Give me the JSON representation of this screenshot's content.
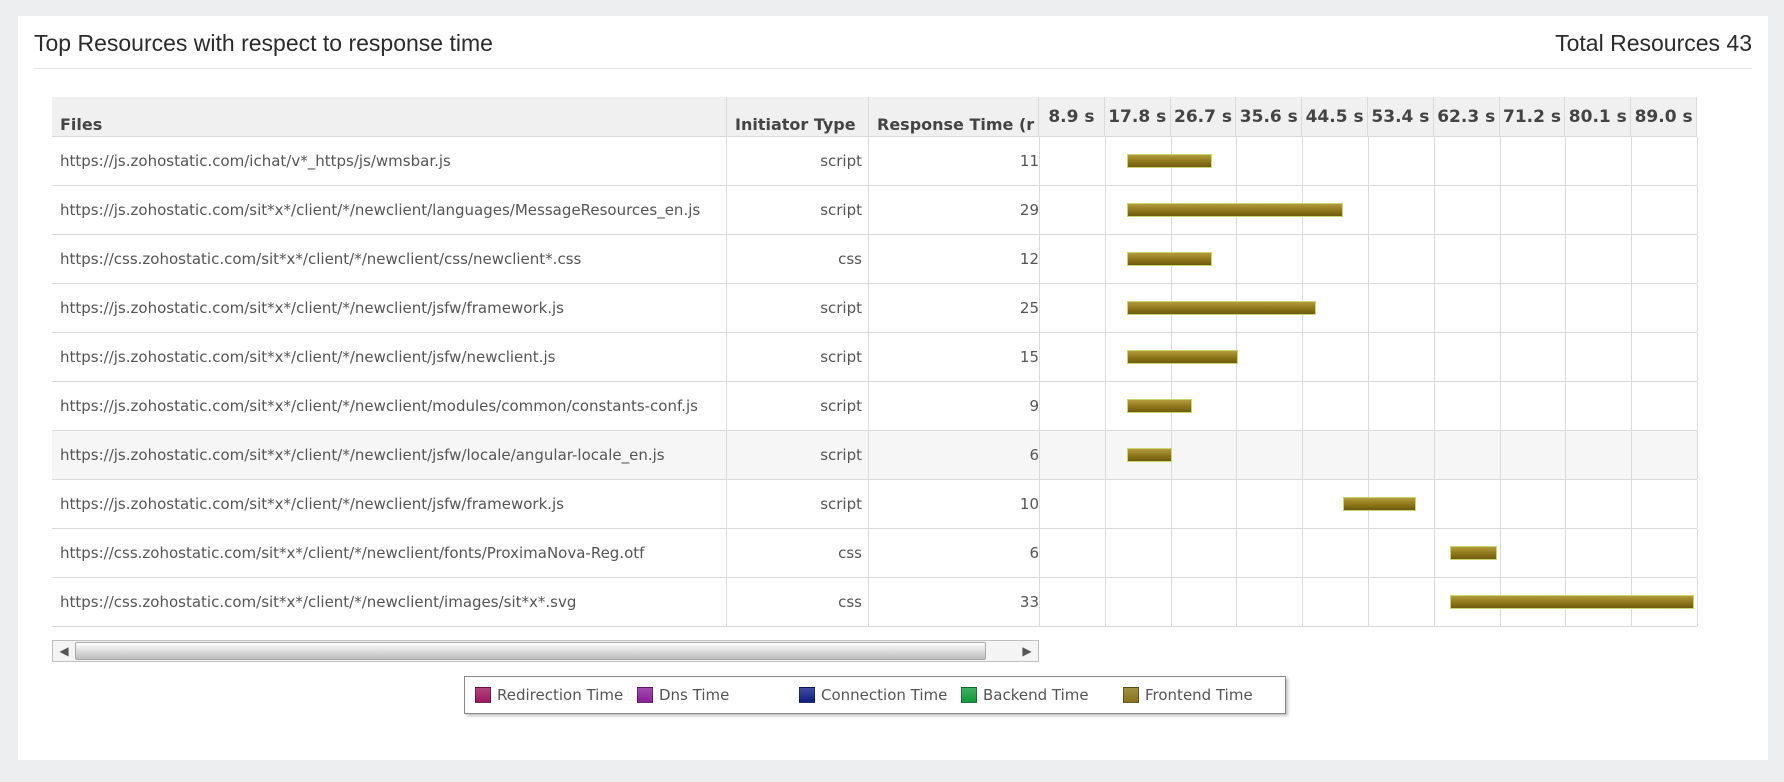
{
  "header": {
    "title": "Top Resources with respect to response time",
    "total_label": "Total Resources 43"
  },
  "table": {
    "columns": {
      "files": "Files",
      "initiator": "Initiator Type",
      "response": "Response Time (r"
    },
    "timeline_ticks": [
      "8.9 s",
      "17.8 s",
      "26.7 s",
      "35.6 s",
      "44.5 s",
      "53.4 s",
      "62.3 s",
      "71.2 s",
      "80.1 s",
      "89.0 s"
    ],
    "rows": [
      {
        "file": "https://js.zohostatic.com/ichat/v*_https/js/wmsbar.js",
        "initiator": "script",
        "response": "11",
        "start_s": 11.7,
        "end_s": 23.2
      },
      {
        "file": "https://js.zohostatic.com/sit*x*/client/*/newclient/languages/MessageResources_en.js",
        "initiator": "script",
        "response": "29",
        "start_s": 11.7,
        "end_s": 41.0
      },
      {
        "file": "https://css.zohostatic.com/sit*x*/client/*/newclient/css/newclient*.css",
        "initiator": "css",
        "response": "12",
        "start_s": 11.7,
        "end_s": 23.2
      },
      {
        "file": "https://js.zohostatic.com/sit*x*/client/*/newclient/jsfw/framework.js",
        "initiator": "script",
        "response": "25",
        "start_s": 11.7,
        "end_s": 37.3
      },
      {
        "file": "https://js.zohostatic.com/sit*x*/client/*/newclient/jsfw/newclient.js",
        "initiator": "script",
        "response": "15",
        "start_s": 11.7,
        "end_s": 26.8
      },
      {
        "file": "https://js.zohostatic.com/sit*x*/client/*/newclient/modules/common/constants-conf.js",
        "initiator": "script",
        "response": "9",
        "start_s": 11.7,
        "end_s": 20.5
      },
      {
        "file": "https://js.zohostatic.com/sit*x*/client/*/newclient/jsfw/locale/angular-locale_en.js",
        "initiator": "script",
        "response": "6",
        "start_s": 11.7,
        "end_s": 17.8
      },
      {
        "file": "https://js.zohostatic.com/sit*x*/client/*/newclient/jsfw/framework.js",
        "initiator": "script",
        "response": "10",
        "start_s": 41.0,
        "end_s": 50.9
      },
      {
        "file": "https://css.zohostatic.com/sit*x*/client/*/newclient/fonts/ProximaNova-Reg.otf",
        "initiator": "css",
        "response": "6",
        "start_s": 55.4,
        "end_s": 61.8
      },
      {
        "file": "https://css.zohostatic.com/sit*x*/client/*/newclient/images/sit*x*.svg",
        "initiator": "css",
        "response": "33",
        "start_s": 55.4,
        "end_s": 88.6
      }
    ],
    "selected_row": 6
  },
  "legend": [
    {
      "label": "Redirection Time",
      "color": "#a0155f"
    },
    {
      "label": "Dns Time",
      "color": "#8a1f99"
    },
    {
      "label": "Connection Time",
      "color": "#0d1f86"
    },
    {
      "label": "Backend Time",
      "color": "#119a3a"
    },
    {
      "label": "Frontend Time",
      "color": "#8a7317"
    }
  ],
  "colors": {
    "bar_fill": "#8a7317",
    "bar_border": "#c8d66f",
    "header_bg": "#f0f0f0"
  }
}
